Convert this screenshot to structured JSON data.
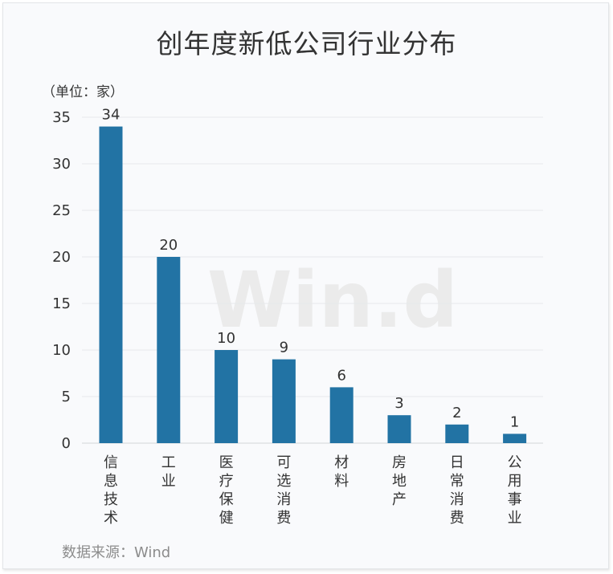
{
  "chart_data": {
    "type": "bar",
    "title": "创年度新低公司行业分布",
    "unit_label": "（单位：家）",
    "categories": [
      "信息技术",
      "工业",
      "医疗保健",
      "可选消费",
      "材料",
      "房地产",
      "日常消费",
      "公用事业"
    ],
    "values": [
      34,
      20,
      10,
      9,
      6,
      3,
      2,
      1
    ],
    "yticks": [
      "0",
      "5",
      "10",
      "15",
      "20",
      "25",
      "30",
      "35"
    ],
    "ylim": [
      0,
      35
    ],
    "grid": true,
    "bar_color": "#2273a4",
    "source": "数据来源：Wind",
    "watermark": "Win.d"
  }
}
